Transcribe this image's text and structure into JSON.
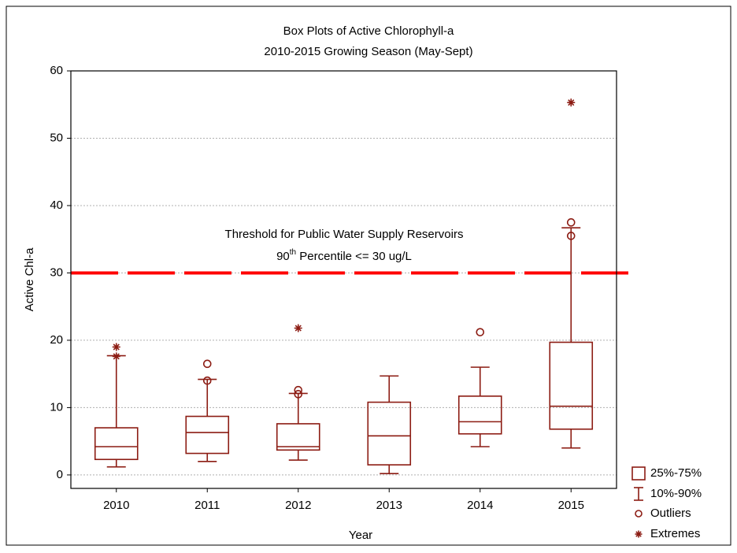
{
  "chart_data": {
    "type": "box",
    "title": "Box Plots of Active Chlorophyll-a",
    "subtitle": "2010-2015 Growing Season (May-Sept)",
    "x_label": "Year",
    "y_label": "Active Chl-a",
    "categories": [
      "2010",
      "2011",
      "2012",
      "2013",
      "2014",
      "2015"
    ],
    "color": "#8c1c13",
    "boxes": [
      {
        "whisker_low": 1.2,
        "q1": 2.3,
        "median": 4.2,
        "q3": 7.0,
        "whisker_high": 17.7,
        "outliers": [],
        "extremes": [
          19.0,
          17.6
        ]
      },
      {
        "whisker_low": 2.0,
        "q1": 3.2,
        "median": 6.3,
        "q3": 8.7,
        "whisker_high": 14.2,
        "outliers": [
          16.5,
          14.0
        ],
        "extremes": []
      },
      {
        "whisker_low": 2.2,
        "q1": 3.7,
        "median": 4.2,
        "q3": 7.6,
        "whisker_high": 12.1,
        "outliers": [
          12.6,
          12.0
        ],
        "extremes": [
          21.8
        ]
      },
      {
        "whisker_low": 0.2,
        "q1": 1.5,
        "median": 5.8,
        "q3": 10.8,
        "whisker_high": 14.7,
        "outliers": [],
        "extremes": []
      },
      {
        "whisker_low": 4.2,
        "q1": 6.1,
        "median": 7.9,
        "q3": 11.7,
        "whisker_high": 16.0,
        "outliers": [
          21.2
        ],
        "extremes": []
      },
      {
        "whisker_low": 4.0,
        "q1": 6.8,
        "median": 10.2,
        "q3": 19.7,
        "whisker_high": 36.7,
        "outliers": [
          37.5,
          35.5
        ],
        "extremes": [
          55.3
        ]
      }
    ],
    "threshold": {
      "value": 30,
      "color": "#ff0000"
    },
    "annotation": {
      "line1": "Threshold for Public Water Supply Reservoirs",
      "line2_prefix": "90",
      "line2_sup": "th",
      "line2_suffix": " Percentile <= 30 ug/L"
    },
    "legend": {
      "box": "25%-75%",
      "whisker": "10%-90%",
      "outliers": "Outliers",
      "extremes": "Extremes"
    },
    "ylim": [
      -2,
      60
    ],
    "yticks": [
      0,
      10,
      20,
      30,
      40,
      50,
      60
    ],
    "grid": true
  }
}
